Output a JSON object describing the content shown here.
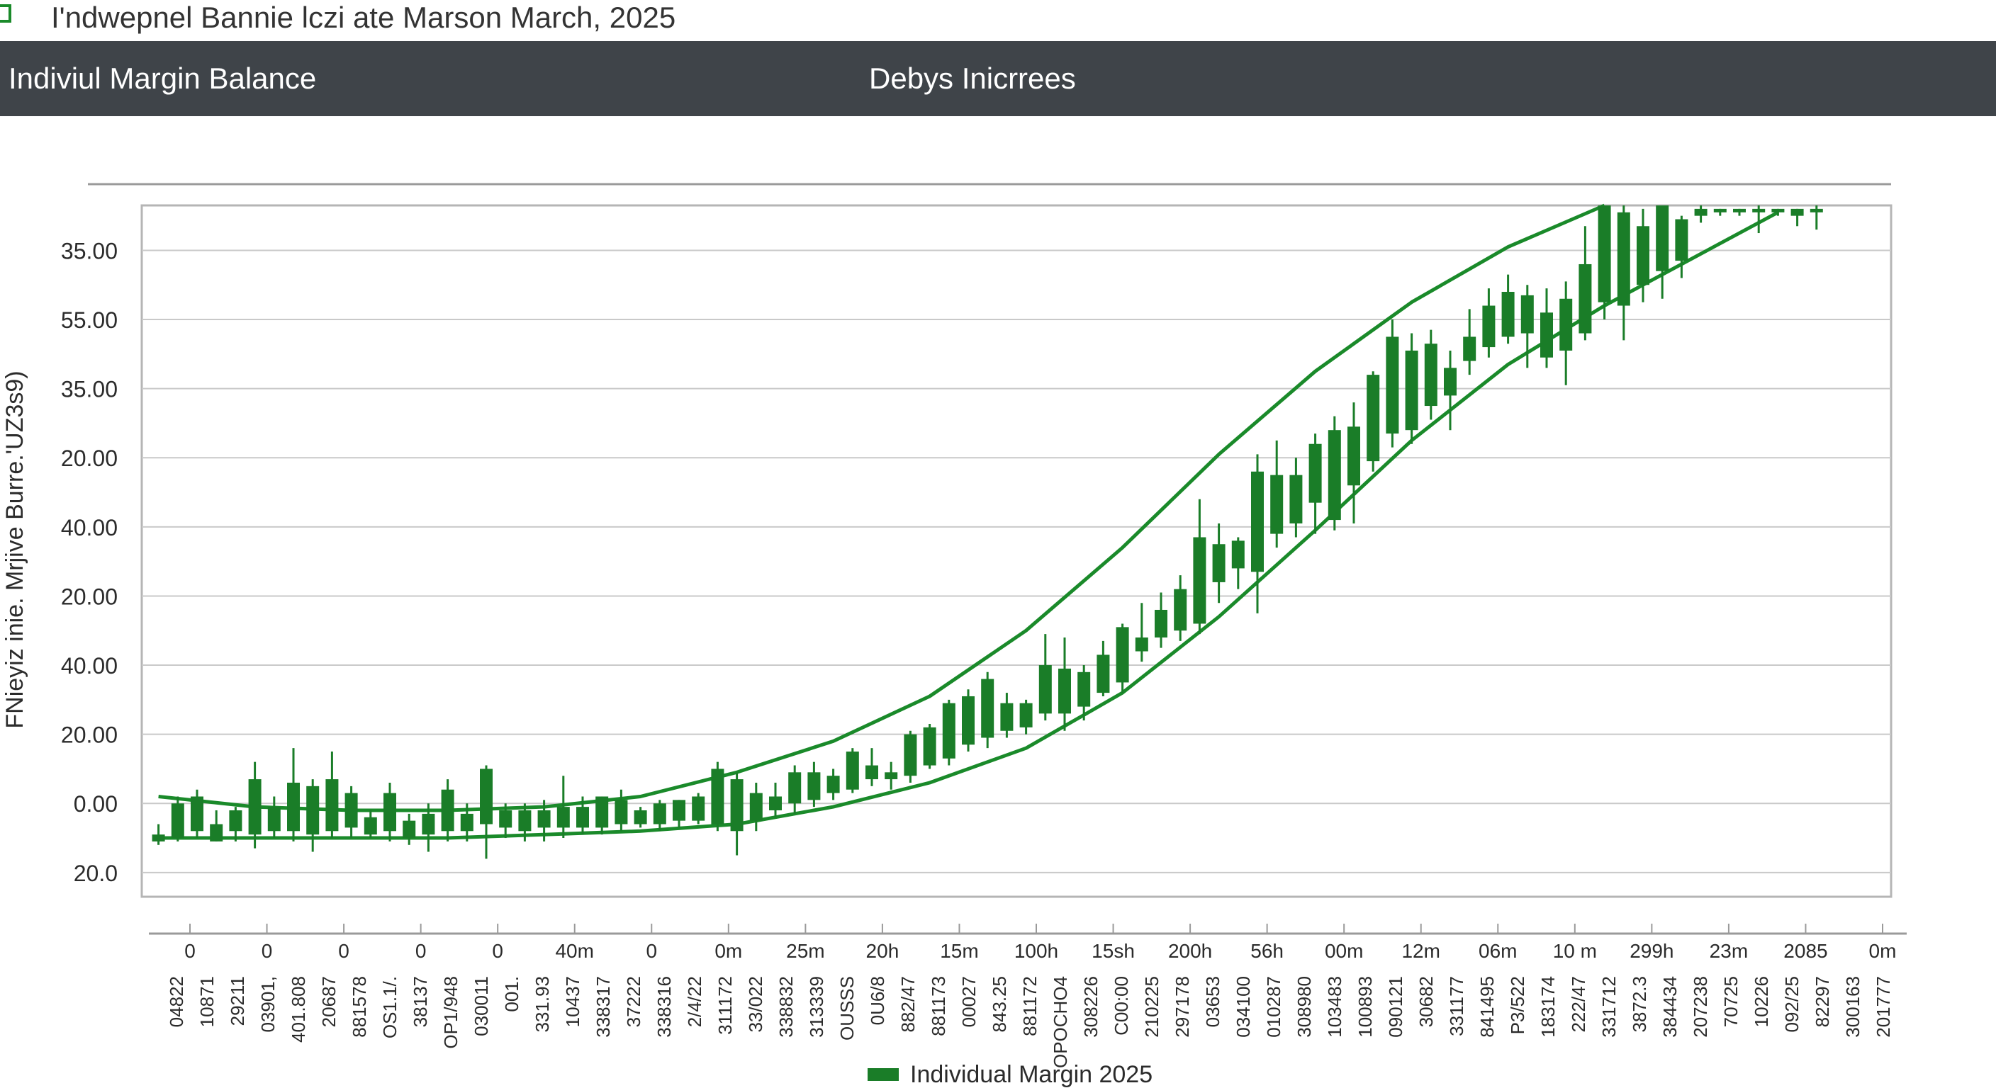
{
  "window": {
    "title": "I'ndwepnel Bannie lczi ate Marson March, 2025"
  },
  "header": {
    "left_title": "Indiviul Margin Balance",
    "center_title": "Debys Inicrrees"
  },
  "colors": {
    "header_band": "#3f4449",
    "candle": "#1a7d28",
    "band_line": "#1a8a2a",
    "grid": "#c9c9c9",
    "app_icon": "#1a8a2a"
  },
  "legend": {
    "label": "Individual Margin 2025",
    "swatch_icon": "legend-swatch-icon"
  },
  "chart_data": {
    "type": "candlestick",
    "ylabel": "FNieyiz inie. Mrjive Burre.'UZ3s9)",
    "y_tick_labels": [
      "35.00",
      "55.00",
      "35.00",
      "20.00",
      "40.00",
      "20.00",
      "40.00",
      "20.00",
      "0.00",
      "20.0"
    ],
    "y_tick_values": [
      8,
      7,
      6,
      5,
      4,
      3,
      2,
      1,
      0,
      -1
    ],
    "ylim": [
      -1.35,
      8.65
    ],
    "grid": true,
    "legend_position": "bottom-center",
    "x_top_labels": [
      "0",
      "0",
      "0",
      "0",
      "0",
      "40m",
      "0",
      "0m",
      "25m",
      "20h",
      "15m",
      "100h",
      "15sh",
      "200h",
      "56h",
      "00m",
      "12m",
      "06m",
      "10 m",
      "299h",
      "23m",
      "2085",
      "0m"
    ],
    "x_bottom_labels": [
      "04822",
      "10871",
      "29211",
      "03901,",
      "401.808",
      "20687",
      "881578",
      "OS1.1/.",
      "38137",
      "OP1/948",
      "030011",
      "001.",
      "331.93",
      "10437",
      "338317",
      "37222",
      "338316",
      "2/4/22",
      "311172",
      "33/022",
      "338832",
      "313339",
      "OUSSS",
      "0U6/8",
      "882/47",
      "881173",
      "00027",
      "843.25",
      "881172",
      "OPOCHO4",
      "308226",
      "C00:00",
      "210225",
      "297178",
      "03653",
      "034100",
      "010287",
      "308980",
      "103483",
      "100893",
      "090121",
      "30682",
      "331177",
      "841495",
      "P3/522",
      "183174",
      "222/47",
      "331712",
      "3872.3",
      "384434",
      "207238",
      "70725",
      "10226",
      "092/25",
      "82297",
      "300163",
      "201777"
    ],
    "ohlc": [
      {
        "x": 1,
        "open": -0.55,
        "high": -0.3,
        "low": -0.6,
        "close": -0.45
      },
      {
        "x": 2,
        "open": -0.5,
        "high": 0.1,
        "low": -0.55,
        "close": 0.0
      },
      {
        "x": 3,
        "open": -0.4,
        "high": 0.2,
        "low": -0.5,
        "close": 0.1
      },
      {
        "x": 4,
        "open": -0.55,
        "high": -0.1,
        "low": -0.55,
        "close": -0.3
      },
      {
        "x": 5,
        "open": -0.4,
        "high": -0.05,
        "low": -0.55,
        "close": -0.1
      },
      {
        "x": 6,
        "open": -0.45,
        "high": 0.6,
        "low": -0.65,
        "close": 0.35
      },
      {
        "x": 7,
        "open": -0.4,
        "high": 0.1,
        "low": -0.5,
        "close": -0.05
      },
      {
        "x": 8,
        "open": -0.4,
        "high": 0.8,
        "low": -0.55,
        "close": 0.3
      },
      {
        "x": 9,
        "open": -0.45,
        "high": 0.35,
        "low": -0.7,
        "close": 0.25
      },
      {
        "x": 10,
        "open": -0.4,
        "high": 0.75,
        "low": -0.5,
        "close": 0.35
      },
      {
        "x": 11,
        "open": -0.35,
        "high": 0.25,
        "low": -0.5,
        "close": 0.15
      },
      {
        "x": 12,
        "open": -0.45,
        "high": -0.1,
        "low": -0.5,
        "close": -0.2
      },
      {
        "x": 13,
        "open": -0.4,
        "high": 0.3,
        "low": -0.55,
        "close": 0.15
      },
      {
        "x": 14,
        "open": -0.5,
        "high": -0.15,
        "low": -0.6,
        "close": -0.25
      },
      {
        "x": 15,
        "open": -0.45,
        "high": 0.0,
        "low": -0.7,
        "close": -0.15
      },
      {
        "x": 16,
        "open": -0.4,
        "high": 0.35,
        "low": -0.55,
        "close": 0.2
      },
      {
        "x": 17,
        "open": -0.4,
        "high": 0.0,
        "low": -0.55,
        "close": -0.15
      },
      {
        "x": 18,
        "open": -0.3,
        "high": 0.55,
        "low": -0.8,
        "close": 0.5
      },
      {
        "x": 19,
        "open": -0.35,
        "high": 0.0,
        "low": -0.5,
        "close": -0.1
      },
      {
        "x": 20,
        "open": -0.4,
        "high": 0.0,
        "low": -0.55,
        "close": -0.1
      },
      {
        "x": 21,
        "open": -0.35,
        "high": 0.05,
        "low": -0.55,
        "close": -0.1
      },
      {
        "x": 22,
        "open": -0.35,
        "high": 0.4,
        "low": -0.5,
        "close": -0.05
      },
      {
        "x": 23,
        "open": -0.35,
        "high": 0.1,
        "low": -0.45,
        "close": -0.05
      },
      {
        "x": 24,
        "open": -0.35,
        "high": 0.1,
        "low": -0.45,
        "close": 0.1
      },
      {
        "x": 25,
        "open": -0.3,
        "high": 0.2,
        "low": -0.4,
        "close": 0.05
      },
      {
        "x": 26,
        "open": -0.3,
        "high": -0.05,
        "low": -0.35,
        "close": -0.1
      },
      {
        "x": 27,
        "open": -0.3,
        "high": 0.05,
        "low": -0.4,
        "close": 0.0
      },
      {
        "x": 28,
        "open": -0.25,
        "high": 0.05,
        "low": -0.35,
        "close": 0.05
      },
      {
        "x": 29,
        "open": -0.25,
        "high": 0.15,
        "low": -0.3,
        "close": 0.1
      },
      {
        "x": 30,
        "open": -0.3,
        "high": 0.6,
        "low": -0.4,
        "close": 0.5
      },
      {
        "x": 31,
        "open": -0.4,
        "high": 0.45,
        "low": -0.75,
        "close": 0.35
      },
      {
        "x": 32,
        "open": -0.25,
        "high": 0.3,
        "low": -0.4,
        "close": 0.15
      },
      {
        "x": 33,
        "open": -0.1,
        "high": 0.3,
        "low": -0.2,
        "close": 0.1
      },
      {
        "x": 34,
        "open": 0.0,
        "high": 0.55,
        "low": -0.15,
        "close": 0.45
      },
      {
        "x": 35,
        "open": 0.05,
        "high": 0.6,
        "low": -0.05,
        "close": 0.45
      },
      {
        "x": 36,
        "open": 0.15,
        "high": 0.5,
        "low": 0.05,
        "close": 0.4
      },
      {
        "x": 37,
        "open": 0.2,
        "high": 0.8,
        "low": 0.15,
        "close": 0.75
      },
      {
        "x": 38,
        "open": 0.35,
        "high": 0.8,
        "low": 0.25,
        "close": 0.55
      },
      {
        "x": 39,
        "open": 0.35,
        "high": 0.6,
        "low": 0.2,
        "close": 0.45
      },
      {
        "x": 40,
        "open": 0.4,
        "high": 1.05,
        "low": 0.3,
        "close": 1.0
      },
      {
        "x": 41,
        "open": 0.55,
        "high": 1.15,
        "low": 0.5,
        "close": 1.1
      },
      {
        "x": 42,
        "open": 0.65,
        "high": 1.5,
        "low": 0.55,
        "close": 1.45
      },
      {
        "x": 43,
        "open": 0.85,
        "high": 1.65,
        "low": 0.75,
        "close": 1.55
      },
      {
        "x": 44,
        "open": 0.95,
        "high": 1.9,
        "low": 0.8,
        "close": 1.8
      },
      {
        "x": 45,
        "open": 1.05,
        "high": 1.6,
        "low": 0.95,
        "close": 1.45
      },
      {
        "x": 46,
        "open": 1.1,
        "high": 1.5,
        "low": 1.0,
        "close": 1.45
      },
      {
        "x": 47,
        "open": 1.3,
        "high": 2.45,
        "low": 1.2,
        "close": 2.0
      },
      {
        "x": 48,
        "open": 1.3,
        "high": 2.4,
        "low": 1.05,
        "close": 1.95
      },
      {
        "x": 49,
        "open": 1.4,
        "high": 2.0,
        "low": 1.2,
        "close": 1.9
      },
      {
        "x": 50,
        "open": 1.6,
        "high": 2.35,
        "low": 1.55,
        "close": 2.15
      },
      {
        "x": 51,
        "open": 1.75,
        "high": 2.6,
        "low": 1.6,
        "close": 2.55
      },
      {
        "x": 52,
        "open": 2.2,
        "high": 2.9,
        "low": 2.05,
        "close": 2.4
      },
      {
        "x": 53,
        "open": 2.4,
        "high": 3.05,
        "low": 2.25,
        "close": 2.8
      },
      {
        "x": 54,
        "open": 2.5,
        "high": 3.3,
        "low": 2.35,
        "close": 3.1
      },
      {
        "x": 55,
        "open": 2.6,
        "high": 4.4,
        "low": 2.45,
        "close": 3.85
      },
      {
        "x": 56,
        "open": 3.2,
        "high": 4.05,
        "low": 2.9,
        "close": 3.75
      },
      {
        "x": 57,
        "open": 3.4,
        "high": 3.85,
        "low": 3.1,
        "close": 3.8
      },
      {
        "x": 58,
        "open": 3.35,
        "high": 5.05,
        "low": 2.75,
        "close": 4.8
      },
      {
        "x": 59,
        "open": 3.9,
        "high": 5.25,
        "low": 3.7,
        "close": 4.75
      },
      {
        "x": 60,
        "open": 4.05,
        "high": 5.0,
        "low": 3.85,
        "close": 4.75
      },
      {
        "x": 61,
        "open": 4.35,
        "high": 5.35,
        "low": 3.9,
        "close": 5.2
      },
      {
        "x": 62,
        "open": 4.1,
        "high": 5.6,
        "low": 3.95,
        "close": 5.4
      },
      {
        "x": 63,
        "open": 4.6,
        "high": 5.8,
        "low": 4.05,
        "close": 5.45
      },
      {
        "x": 64,
        "open": 4.95,
        "high": 6.25,
        "low": 4.8,
        "close": 6.2
      },
      {
        "x": 65,
        "open": 5.35,
        "high": 7.0,
        "low": 5.15,
        "close": 6.75
      },
      {
        "x": 66,
        "open": 5.4,
        "high": 6.8,
        "low": 5.2,
        "close": 6.55
      },
      {
        "x": 67,
        "open": 5.75,
        "high": 6.85,
        "low": 5.55,
        "close": 6.65
      },
      {
        "x": 68,
        "open": 5.9,
        "high": 6.55,
        "low": 5.4,
        "close": 6.3
      },
      {
        "x": 69,
        "open": 6.4,
        "high": 7.15,
        "low": 6.2,
        "close": 6.75
      },
      {
        "x": 70,
        "open": 6.6,
        "high": 7.45,
        "low": 6.45,
        "close": 7.2
      },
      {
        "x": 71,
        "open": 6.75,
        "high": 7.65,
        "low": 6.65,
        "close": 7.4
      },
      {
        "x": 72,
        "open": 6.8,
        "high": 7.5,
        "low": 6.3,
        "close": 7.35
      },
      {
        "x": 73,
        "open": 6.45,
        "high": 7.45,
        "low": 6.3,
        "close": 7.1
      },
      {
        "x": 74,
        "open": 6.55,
        "high": 7.55,
        "low": 6.05,
        "close": 7.3
      },
      {
        "x": 75,
        "open": 6.8,
        "high": 8.35,
        "low": 6.7,
        "close": 7.8
      },
      {
        "x": 76,
        "open": 7.25,
        "high": 8.65,
        "low": 7.0,
        "close": 8.65
      },
      {
        "x": 77,
        "open": 7.2,
        "high": 8.65,
        "low": 6.7,
        "close": 8.55
      },
      {
        "x": 78,
        "open": 7.5,
        "high": 8.6,
        "low": 7.25,
        "close": 8.35
      },
      {
        "x": 79,
        "open": 7.7,
        "high": 8.65,
        "low": 7.3,
        "close": 8.65
      },
      {
        "x": 80,
        "open": 7.85,
        "high": 8.5,
        "low": 7.6,
        "close": 8.45
      },
      {
        "x": 81,
        "open": 8.5,
        "high": 8.65,
        "low": 8.4,
        "close": 8.6
      },
      {
        "x": 82,
        "open": 8.55,
        "high": 8.6,
        "low": 8.5,
        "close": 8.6
      },
      {
        "x": 83,
        "open": 8.55,
        "high": 8.6,
        "low": 8.5,
        "close": 8.6
      },
      {
        "x": 84,
        "open": 8.55,
        "high": 8.65,
        "low": 8.25,
        "close": 8.6
      },
      {
        "x": 85,
        "open": 8.55,
        "high": 8.6,
        "low": 8.5,
        "close": 8.6
      },
      {
        "x": 86,
        "open": 8.5,
        "high": 8.6,
        "low": 8.35,
        "close": 8.6
      },
      {
        "x": 87,
        "open": 8.55,
        "high": 8.65,
        "low": 8.3,
        "close": 8.6
      }
    ],
    "upper_band": [
      [
        0,
        0.1
      ],
      [
        5,
        -0.05
      ],
      [
        10,
        -0.1
      ],
      [
        15,
        -0.1
      ],
      [
        20,
        -0.05
      ],
      [
        25,
        0.1
      ],
      [
        30,
        0.45
      ],
      [
        35,
        0.9
      ],
      [
        40,
        1.55
      ],
      [
        45,
        2.5
      ],
      [
        50,
        3.7
      ],
      [
        55,
        5.05
      ],
      [
        60,
        6.25
      ],
      [
        65,
        7.25
      ],
      [
        70,
        8.05
      ],
      [
        75,
        8.7
      ]
    ],
    "lower_band": [
      [
        0,
        -0.5
      ],
      [
        5,
        -0.5
      ],
      [
        10,
        -0.5
      ],
      [
        15,
        -0.5
      ],
      [
        20,
        -0.45
      ],
      [
        25,
        -0.4
      ],
      [
        30,
        -0.3
      ],
      [
        35,
        -0.05
      ],
      [
        40,
        0.3
      ],
      [
        45,
        0.8
      ],
      [
        50,
        1.6
      ],
      [
        55,
        2.7
      ],
      [
        60,
        3.95
      ],
      [
        65,
        5.25
      ],
      [
        70,
        6.35
      ],
      [
        75,
        7.2
      ],
      [
        80,
        7.95
      ],
      [
        84,
        8.55
      ]
    ]
  }
}
